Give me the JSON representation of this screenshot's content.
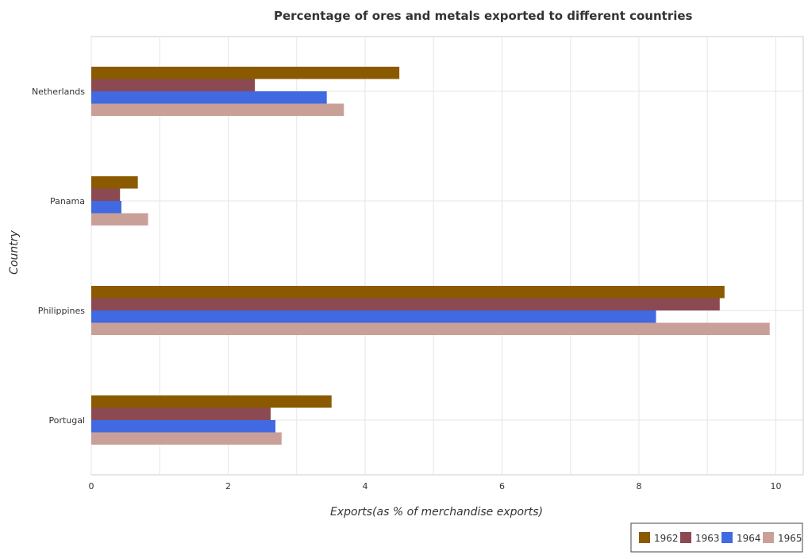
{
  "chart_data": {
    "type": "bar",
    "orientation": "horizontal",
    "title": "Percentage of ores and metals exported to different countries",
    "xlabel": "Exports(as % of merchandise exports)",
    "ylabel": "Country",
    "categories": [
      "Netherlands",
      "Panama",
      "Philippines",
      "Portugal"
    ],
    "series": [
      {
        "name": "1962",
        "color": "#8B5A00",
        "values": [
          4.5,
          0.68,
          9.25,
          3.51
        ]
      },
      {
        "name": "1963",
        "color": "#8B4A52",
        "values": [
          2.39,
          0.42,
          9.18,
          2.62
        ]
      },
      {
        "name": "1964",
        "color": "#4169E1",
        "values": [
          3.44,
          0.44,
          8.25,
          2.69
        ]
      },
      {
        "name": "1965",
        "color": "#C9A098",
        "values": [
          3.69,
          0.83,
          9.91,
          2.78
        ]
      }
    ],
    "xlim": [
      0,
      10.4
    ],
    "xticks": [
      0,
      2,
      4,
      6,
      8,
      10
    ],
    "grid": true,
    "legend_position": "bottom-right"
  }
}
